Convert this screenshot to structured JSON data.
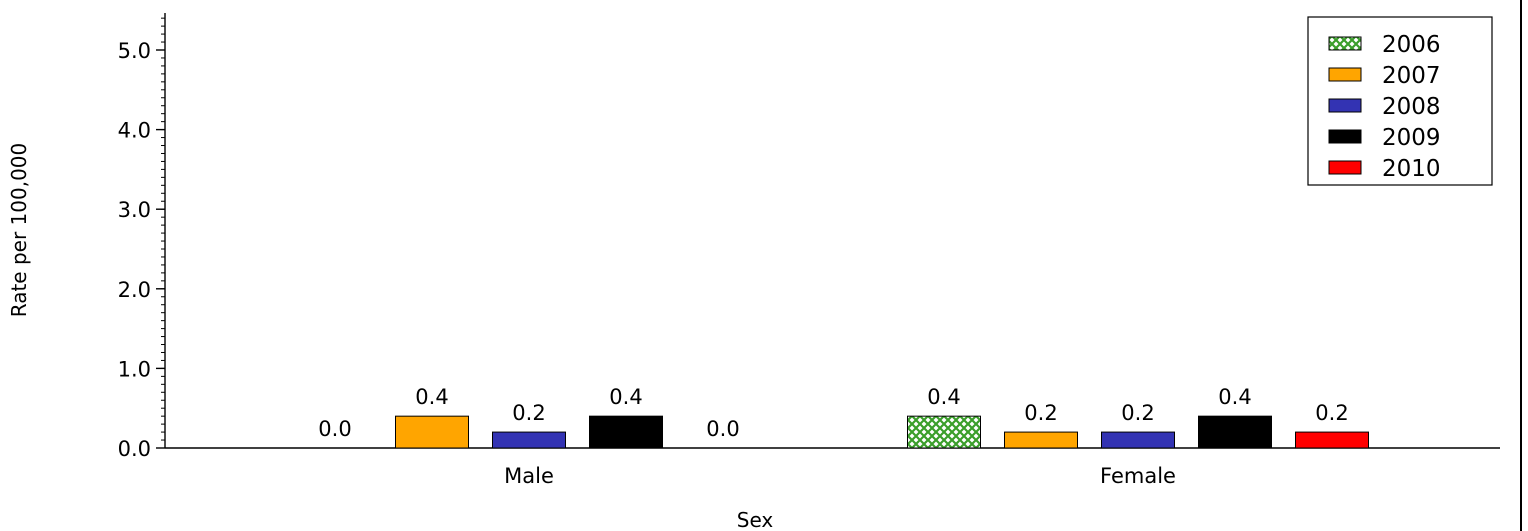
{
  "chart_data": {
    "type": "bar",
    "categories": [
      "Male",
      "Female"
    ],
    "series": [
      {
        "name": "2006",
        "values": [
          0.0,
          0.4
        ],
        "labels": [
          "0.0",
          "0.4"
        ],
        "color": "#3a9e2a",
        "pattern": "crosshatch"
      },
      {
        "name": "2007",
        "values": [
          0.4,
          0.2
        ],
        "labels": [
          "0.4",
          "0.2"
        ],
        "color": "#ffa500"
      },
      {
        "name": "2008",
        "values": [
          0.2,
          0.2
        ],
        "labels": [
          "0.2",
          "0.2"
        ],
        "color": "#3333b3"
      },
      {
        "name": "2009",
        "values": [
          0.4,
          0.4
        ],
        "labels": [
          "0.4",
          "0.4"
        ],
        "color": "#000000"
      },
      {
        "name": "2010",
        "values": [
          0.0,
          0.2
        ],
        "labels": [
          "0.0",
          "0.2"
        ],
        "color": "#ff0000"
      }
    ],
    "xlabel": "Sex",
    "ylabel": "Rate per 100,000",
    "ylim": [
      0,
      5.5
    ],
    "yticks": [
      "0.0",
      "1.0",
      "2.0",
      "3.0",
      "4.0",
      "5.0"
    ],
    "legend_position": "top-right",
    "grid": false
  }
}
